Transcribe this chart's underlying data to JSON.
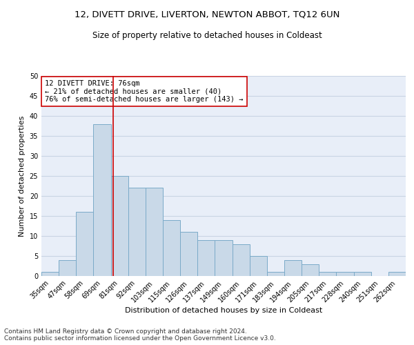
{
  "title1": "12, DIVETT DRIVE, LIVERTON, NEWTON ABBOT, TQ12 6UN",
  "title2": "Size of property relative to detached houses in Coldeast",
  "xlabel": "Distribution of detached houses by size in Coldeast",
  "ylabel": "Number of detached properties",
  "categories": [
    "35sqm",
    "47sqm",
    "58sqm",
    "69sqm",
    "81sqm",
    "92sqm",
    "103sqm",
    "115sqm",
    "126sqm",
    "137sqm",
    "149sqm",
    "160sqm",
    "171sqm",
    "183sqm",
    "194sqm",
    "205sqm",
    "217sqm",
    "228sqm",
    "240sqm",
    "251sqm",
    "262sqm"
  ],
  "values": [
    1,
    4,
    16,
    38,
    25,
    22,
    22,
    14,
    11,
    9,
    9,
    8,
    5,
    1,
    4,
    3,
    1,
    1,
    1,
    0,
    1
  ],
  "bar_color": "#c9d9e8",
  "bar_edge_color": "#7aaac8",
  "vline_color": "#cc0000",
  "vline_x": 3.63,
  "annotation_text": "12 DIVETT DRIVE: 76sqm\n← 21% of detached houses are smaller (40)\n76% of semi-detached houses are larger (143) →",
  "annotation_box_color": "#ffffff",
  "annotation_box_edge": "#cc0000",
  "ylim": [
    0,
    50
  ],
  "yticks": [
    0,
    5,
    10,
    15,
    20,
    25,
    30,
    35,
    40,
    45,
    50
  ],
  "grid_color": "#c8d4e4",
  "bg_color": "#e8eef8",
  "footer": "Contains HM Land Registry data © Crown copyright and database right 2024.\nContains public sector information licensed under the Open Government Licence v3.0.",
  "title1_fontsize": 9.5,
  "title2_fontsize": 8.5,
  "xlabel_fontsize": 8,
  "ylabel_fontsize": 8,
  "tick_fontsize": 7,
  "annotation_fontsize": 7.5,
  "footer_fontsize": 6.5
}
